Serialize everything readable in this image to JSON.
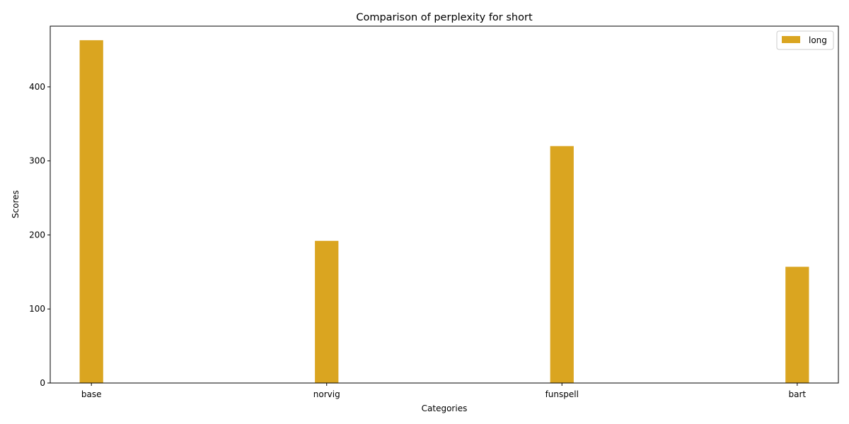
{
  "chart_data": {
    "type": "bar",
    "title": "Comparison of perplexity for short",
    "xlabel": "Categories",
    "ylabel": "Scores",
    "categories": [
      "base",
      "norvig",
      "funspell",
      "bart"
    ],
    "series": [
      {
        "name": "long",
        "values": [
          463,
          192,
          320,
          157
        ],
        "color": "#DAA520"
      }
    ],
    "ylim": [
      0,
      482
    ],
    "yticks": [
      0,
      100,
      200,
      300,
      400
    ],
    "grid": false,
    "legend": {
      "position": "top-right"
    }
  }
}
